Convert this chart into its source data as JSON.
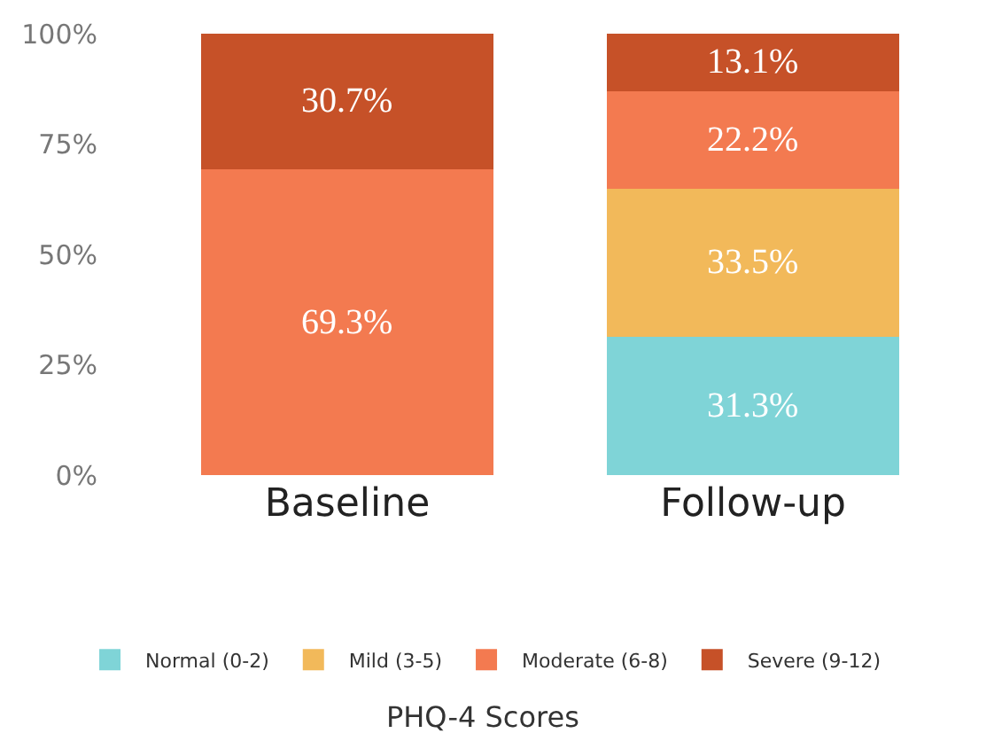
{
  "chart_data": {
    "type": "bar",
    "stacked": true,
    "legend_title": "PHQ-4 Scores",
    "categories": [
      "Baseline",
      "Follow-up"
    ],
    "series": [
      {
        "name": "Normal (0-2)",
        "color": "#7fd4d7",
        "values": [
          0,
          31.3
        ],
        "value_labels": [
          null,
          "31.3%"
        ]
      },
      {
        "name": "Mild (3-5)",
        "color": "#f2b95a",
        "values": [
          0,
          33.5
        ],
        "value_labels": [
          null,
          "33.5%"
        ]
      },
      {
        "name": "Moderate (6-8)",
        "color": "#f37a50",
        "values": [
          69.3,
          22.2
        ],
        "value_labels": [
          "69.3%",
          "22.2%"
        ]
      },
      {
        "name": "Severe (9-12)",
        "color": "#c65128",
        "values": [
          30.7,
          13.1
        ],
        "value_labels": [
          "30.7%",
          "13.1%"
        ]
      }
    ],
    "ylim": [
      0,
      100
    ],
    "yticks": [
      {
        "value": 0,
        "label": "0%"
      },
      {
        "value": 25,
        "label": "25%"
      },
      {
        "value": 50,
        "label": "50%"
      },
      {
        "value": 75,
        "label": "75%"
      },
      {
        "value": 100,
        "label": "100%"
      }
    ],
    "legend": "bottom"
  }
}
